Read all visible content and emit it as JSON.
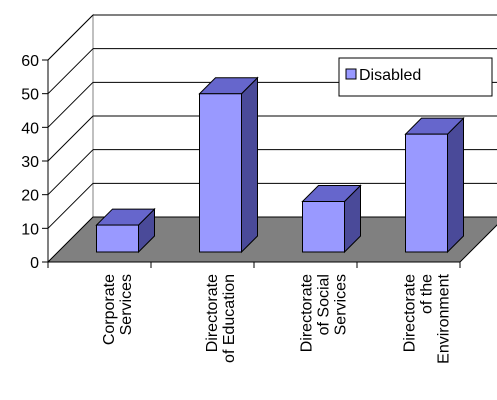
{
  "chart_data": {
    "type": "bar",
    "categories": [
      [
        "Corporate",
        "Services"
      ],
      [
        "Directorate",
        "of Education"
      ],
      [
        "Directorate",
        "of Social",
        "Services"
      ],
      [
        "Directorate",
        "of the",
        "Environment"
      ]
    ],
    "series": [
      {
        "name": "Disabled",
        "values": [
          8,
          47,
          15,
          35
        ],
        "color": "#9999ff"
      }
    ],
    "ylim": [
      0,
      60
    ],
    "yticks": [
      "0",
      "10",
      "20",
      "30",
      "40",
      "50",
      "60"
    ],
    "grid": true,
    "legend_position": "top-right",
    "style": "3d-column",
    "floor_color": "#808080",
    "bar_front_color": "#9999ff",
    "bar_top_color": "#6666cc",
    "bar_side_color": "#4a4a99"
  }
}
